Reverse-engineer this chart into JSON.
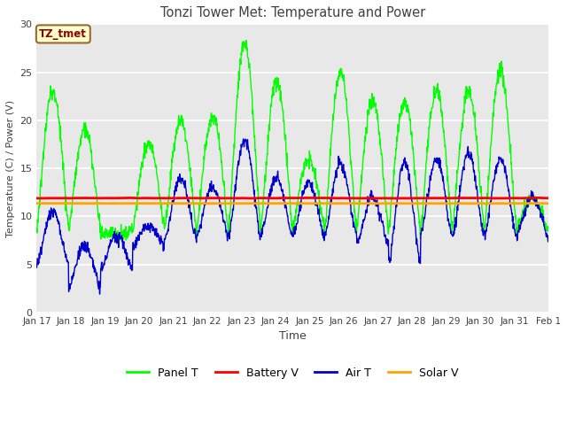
{
  "title": "Tonzi Tower Met: Temperature and Power",
  "xlabel": "Time",
  "ylabel": "Temperature (C) / Power (V)",
  "ylim": [
    0,
    30
  ],
  "yticks": [
    0,
    5,
    10,
    15,
    20,
    25,
    30
  ],
  "x_labels": [
    "Jan 17",
    "Jan 18",
    "Jan 19",
    "Jan 20",
    "Jan 21",
    "Jan 22",
    "Jan 23",
    "Jan 24",
    "Jan 25",
    "Jan 26",
    "Jan 27",
    "Jan 28",
    "Jan 29",
    "Jan 30",
    "Jan 31",
    "Feb 1"
  ],
  "annotation_text": "TZ_tmet",
  "annotation_box_facecolor": "#FFFFCC",
  "annotation_box_edgecolor": "#996633",
  "annotation_text_color": "#8B0000",
  "fig_bg": "#FFFFFF",
  "plot_bg": "#E8E8E8",
  "grid_color": "#FFFFFF",
  "colors": {
    "panel_t": "#00FF00",
    "battery_v": "#FF0000",
    "air_t": "#0000CD",
    "solar_v": "#FFA500"
  },
  "legend_labels": [
    "Panel T",
    "Battery V",
    "Air T",
    "Solar V"
  ],
  "battery_v_value": 11.9,
  "solar_v_value": 11.35
}
